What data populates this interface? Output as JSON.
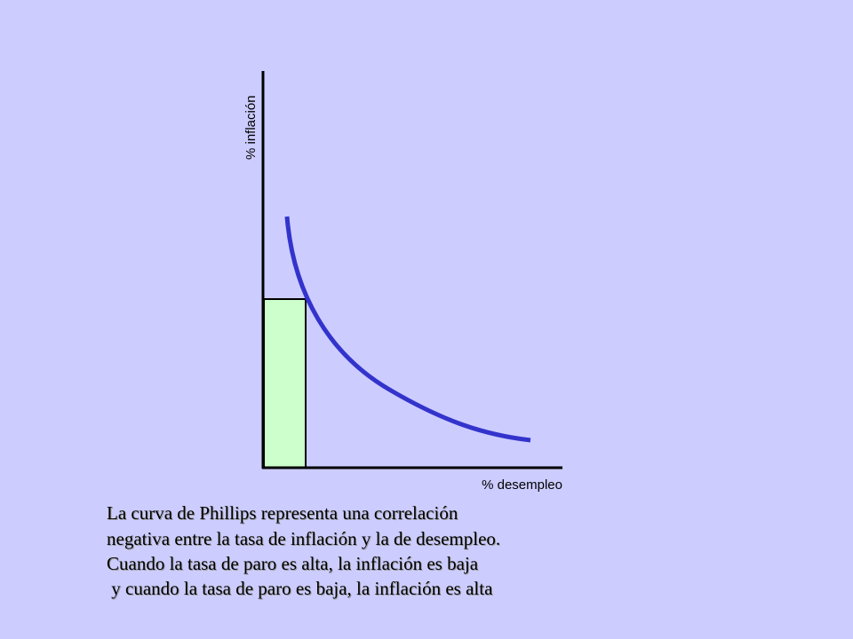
{
  "diagram": {
    "y_axis_label": "% inflación",
    "x_axis_label": "% desempleo"
  },
  "caption": {
    "lines": [
      "La curva de Phillips representa una correlación",
      "negativa entre la tasa de inflación y la de desempleo.",
      "Cuando la tasa de paro es alta, la inflación es baja",
      " y cuando la tasa de paro es baja, la inflación es alta"
    ]
  },
  "colors": {
    "background": "#ccccff",
    "curve": "#3333cc",
    "rectangle_fill": "#ccffcc",
    "axes": "#000000"
  }
}
